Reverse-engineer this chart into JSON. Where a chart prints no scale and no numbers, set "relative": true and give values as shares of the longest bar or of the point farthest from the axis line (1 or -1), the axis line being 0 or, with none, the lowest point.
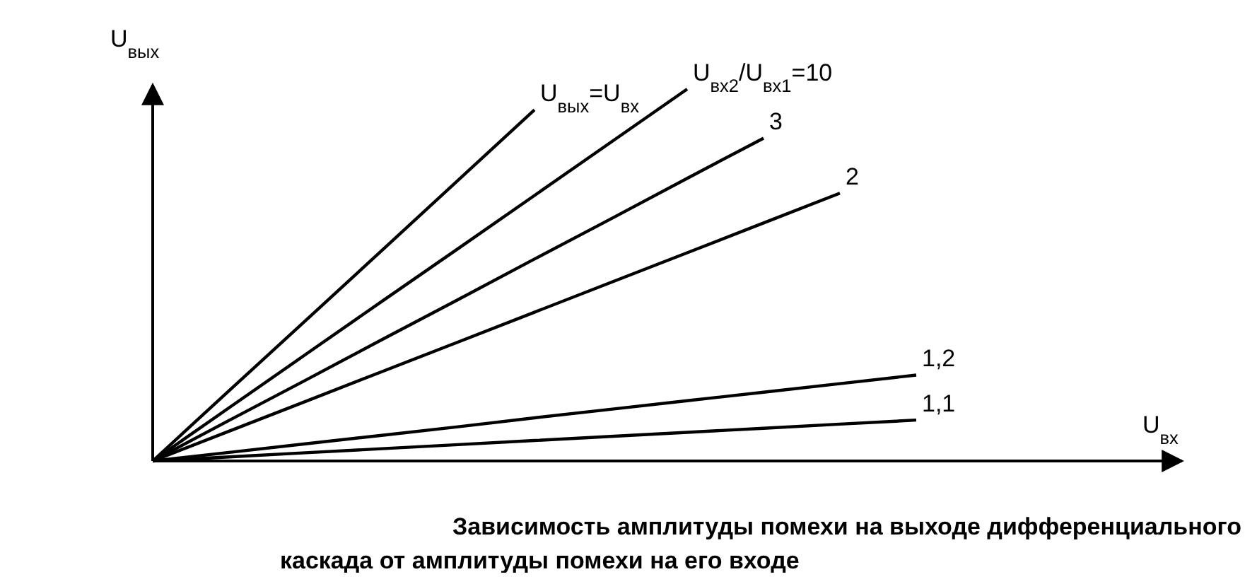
{
  "chart_data": {
    "type": "line",
    "relative": true,
    "title": "Зависимость амплитуды помехи на выходе дифференциального каскада от амплитуды помехи на его входе",
    "annotations": [
      "U$_{вх}$"
    ],
    "ylabel": "U$_{вых}$",
    "marker": "none",
    "line_style": "solid",
    "legend": false,
    "categories": [
      null,
      null,
      null,
      null,
      null,
      null,
      null,
      null,
      null,
      null,
      null
    ],
    "series": [
      {
        "name": "U$_{вых}$=U$_{вх}$",
        "color": "#000000",
        "values": [
          0,
          0.189,
          0.377,
          0.566,
          0.755,
          0.944,
          null,
          null,
          null,
          null,
          null
        ]
      },
      {
        "name": "U$_{вх2}$/U$_{вх1}$=10",
        "color": "#000000",
        "values": [
          0,
          0.143,
          0.286,
          0.429,
          0.571,
          0.714,
          0.857,
          1,
          null,
          null,
          null
        ]
      },
      {
        "name": "3",
        "color": "#000000",
        "values": [
          0,
          0.109,
          0.217,
          0.326,
          0.434,
          0.543,
          0.651,
          0.76,
          0.868,
          null,
          null
        ]
      },
      {
        "name": "2",
        "color": "#000000",
        "values": [
          0,
          0.08,
          0.16,
          0.24,
          0.32,
          0.4,
          0.48,
          0.56,
          0.64,
          0.72,
          null
        ]
      },
      {
        "name": "1,2",
        "color": "#000000",
        "values": [
          0,
          0.023,
          0.046,
          0.069,
          0.092,
          0.116,
          0.139,
          0.162,
          0.185,
          0.208,
          0.231
        ]
      },
      {
        "name": "1,1",
        "color": "#000000",
        "values": [
          0,
          0.011,
          0.022,
          0.033,
          0.044,
          0.055,
          0.066,
          0.077,
          0.088,
          0.099,
          0.11
        ]
      }
    ]
  }
}
